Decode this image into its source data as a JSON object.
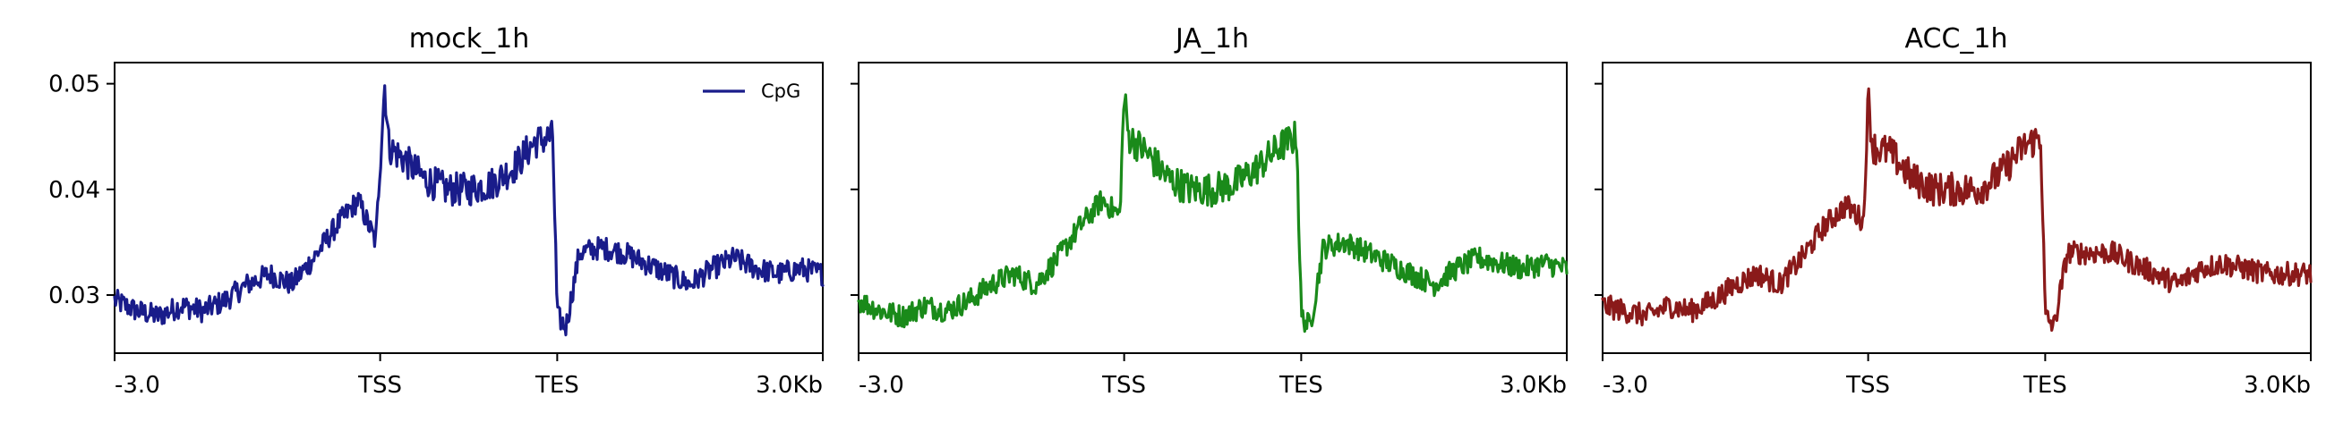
{
  "figure": {
    "panels": [
      {
        "title": "mock_1h",
        "color": "#191C8A",
        "show_yticklabels": true,
        "show_legend": true
      },
      {
        "title": "JA_1h",
        "color": "#1A8A1A",
        "show_yticklabels": false,
        "show_legend": false
      },
      {
        "title": "ACC_1h",
        "color": "#8A1A1A",
        "show_yticklabels": false,
        "show_legend": false
      }
    ]
  },
  "chart_data": [
    {
      "type": "line",
      "title": "mock_1h",
      "xlabel": "",
      "ylabel": "",
      "x_tick_labels": [
        "-3.0",
        "TSS",
        "TES",
        "3.0Kb"
      ],
      "x_tick_positions": [
        0,
        3,
        5,
        8
      ],
      "xlim": [
        0,
        8
      ],
      "ylim": [
        0.0245,
        0.052
      ],
      "y_ticks": [
        0.03,
        0.04,
        0.05
      ],
      "y_tick_labels": [
        "0.03",
        "0.04",
        "0.05"
      ],
      "legend": {
        "entries": [
          "CpG"
        ],
        "placement": "top-right"
      },
      "series": [
        {
          "name": "CpG",
          "color": "#191C8A",
          "x": [
            0,
            0.25,
            0.5,
            0.75,
            1.0,
            1.25,
            1.5,
            1.75,
            2.0,
            2.25,
            2.5,
            2.75,
            2.95,
            3.05,
            3.1,
            3.25,
            3.5,
            3.75,
            4.0,
            4.25,
            4.5,
            4.75,
            4.95,
            5.0,
            5.1,
            5.25,
            5.5,
            5.75,
            6.0,
            6.25,
            6.5,
            6.75,
            7.0,
            7.25,
            7.5,
            7.75,
            8.0
          ],
          "y": [
            0.0295,
            0.0285,
            0.028,
            0.029,
            0.0285,
            0.0295,
            0.031,
            0.032,
            0.031,
            0.0335,
            0.0365,
            0.039,
            0.035,
            0.05,
            0.044,
            0.043,
            0.041,
            0.04,
            0.04,
            0.0405,
            0.042,
            0.0445,
            0.045,
            0.028,
            0.027,
            0.034,
            0.0345,
            0.034,
            0.033,
            0.032,
            0.031,
            0.0325,
            0.0335,
            0.0325,
            0.032,
            0.0325,
            0.032
          ]
        }
      ]
    },
    {
      "type": "line",
      "title": "JA_1h",
      "xlabel": "",
      "ylabel": "",
      "x_tick_labels": [
        "-3.0",
        "TSS",
        "TES",
        "3.0Kb"
      ],
      "x_tick_positions": [
        0,
        3,
        5,
        8
      ],
      "xlim": [
        0,
        8
      ],
      "ylim": [
        0.0245,
        0.052
      ],
      "y_ticks": [
        0.03,
        0.04,
        0.05
      ],
      "y_tick_labels": [
        "",
        "",
        ""
      ],
      "series": [
        {
          "color": "#1A8A1A",
          "x": [
            0,
            0.25,
            0.5,
            0.75,
            1.0,
            1.25,
            1.5,
            1.75,
            2.0,
            2.25,
            2.5,
            2.75,
            2.95,
            3.0,
            3.05,
            3.25,
            3.5,
            3.75,
            4.0,
            4.25,
            4.5,
            4.75,
            4.95,
            5.0,
            5.1,
            5.25,
            5.5,
            5.75,
            6.0,
            6.25,
            6.5,
            6.75,
            7.0,
            7.25,
            7.5,
            7.75,
            8.0
          ],
          "y": [
            0.0295,
            0.0285,
            0.028,
            0.029,
            0.0285,
            0.0295,
            0.031,
            0.032,
            0.031,
            0.0335,
            0.0365,
            0.039,
            0.0375,
            0.049,
            0.045,
            0.0435,
            0.041,
            0.04,
            0.04,
            0.0405,
            0.042,
            0.044,
            0.045,
            0.028,
            0.027,
            0.0345,
            0.035,
            0.034,
            0.033,
            0.032,
            0.031,
            0.0325,
            0.0335,
            0.033,
            0.0325,
            0.033,
            0.0325
          ]
        }
      ]
    },
    {
      "type": "line",
      "title": "ACC_1h",
      "xlabel": "",
      "ylabel": "",
      "x_tick_labels": [
        "-3.0",
        "TSS",
        "TES",
        "3.0Kb"
      ],
      "x_tick_positions": [
        0,
        3,
        5,
        8
      ],
      "xlim": [
        0,
        8
      ],
      "ylim": [
        0.0245,
        0.052
      ],
      "y_ticks": [
        0.03,
        0.04,
        0.05
      ],
      "y_tick_labels": [
        "",
        "",
        ""
      ],
      "series": [
        {
          "color": "#8A1A1A",
          "x": [
            0,
            0.25,
            0.5,
            0.75,
            1.0,
            1.25,
            1.5,
            1.75,
            2.0,
            2.25,
            2.5,
            2.75,
            2.95,
            3.0,
            3.05,
            3.25,
            3.5,
            3.75,
            4.0,
            4.25,
            4.5,
            4.75,
            4.95,
            5.0,
            5.1,
            5.25,
            5.5,
            5.75,
            6.0,
            6.25,
            6.5,
            6.75,
            7.0,
            7.25,
            7.5,
            7.75,
            8.0
          ],
          "y": [
            0.029,
            0.0285,
            0.028,
            0.029,
            0.0285,
            0.0295,
            0.031,
            0.032,
            0.031,
            0.0335,
            0.0365,
            0.0385,
            0.037,
            0.049,
            0.044,
            0.0435,
            0.041,
            0.04,
            0.04,
            0.04,
            0.0415,
            0.044,
            0.045,
            0.028,
            0.027,
            0.034,
            0.034,
            0.034,
            0.033,
            0.032,
            0.031,
            0.0325,
            0.033,
            0.0325,
            0.032,
            0.032,
            0.032
          ]
        }
      ]
    }
  ]
}
